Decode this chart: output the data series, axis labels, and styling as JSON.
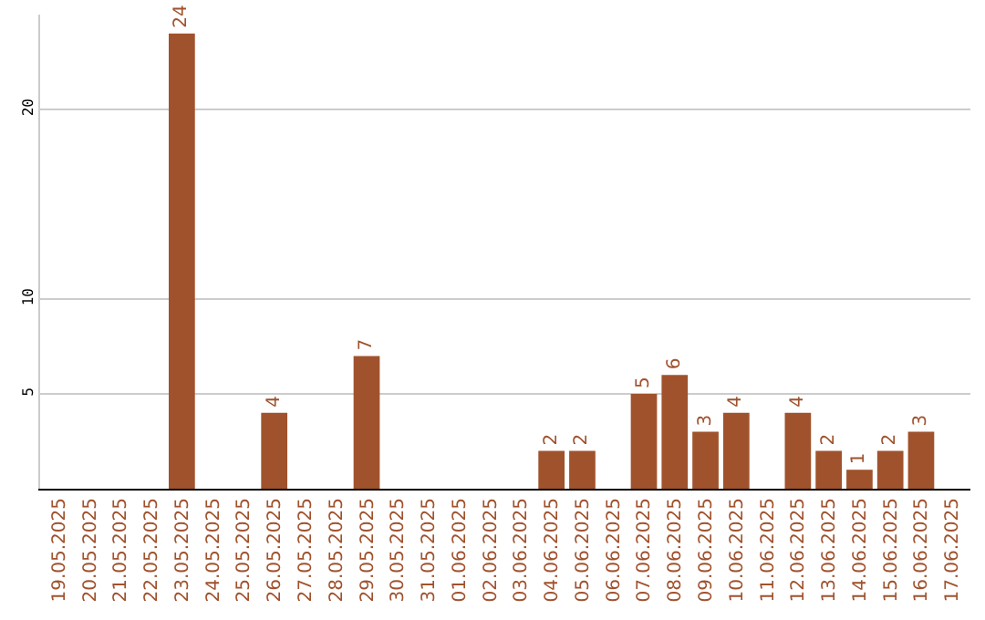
{
  "chart_data": {
    "type": "bar",
    "categories": [
      "19.05.2025",
      "20.05.2025",
      "21.05.2025",
      "22.05.2025",
      "23.05.2025",
      "24.05.2025",
      "25.05.2025",
      "26.05.2025",
      "27.05.2025",
      "28.05.2025",
      "29.05.2025",
      "30.05.2025",
      "31.05.2025",
      "01.06.2025",
      "02.06.2025",
      "03.06.2025",
      "04.06.2025",
      "05.06.2025",
      "06.06.2025",
      "07.06.2025",
      "08.06.2025",
      "09.06.2025",
      "10.06.2025",
      "11.06.2025",
      "12.06.2025",
      "13.06.2025",
      "14.06.2025",
      "15.06.2025",
      "16.06.2025",
      "17.06.2025"
    ],
    "values": [
      0,
      0,
      0,
      0,
      24,
      0,
      0,
      4,
      0,
      0,
      7,
      0,
      0,
      0,
      0,
      0,
      2,
      2,
      0,
      5,
      6,
      3,
      4,
      0,
      4,
      2,
      1,
      2,
      3,
      0
    ],
    "value_labels": [
      null,
      null,
      null,
      null,
      "24",
      null,
      null,
      "4",
      null,
      null,
      "7",
      null,
      null,
      null,
      null,
      null,
      "2",
      "2",
      null,
      "5",
      "6",
      "3",
      "4",
      null,
      "4",
      "2",
      "1",
      "2",
      "3",
      null
    ],
    "color": "#a0522d",
    "ylim": [
      0,
      25
    ],
    "yticks": [
      5,
      10,
      20
    ],
    "grid": "y"
  }
}
